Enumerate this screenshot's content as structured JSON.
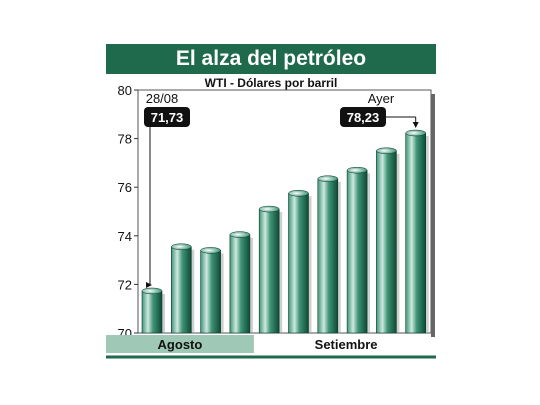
{
  "chart_data": {
    "type": "bar",
    "title": "El alza del petróleo",
    "subtitle": "WTI - Dólares por barril",
    "categories": [
      "",
      "",
      "",
      "",
      "",
      "",
      "",
      "",
      "",
      ""
    ],
    "values": [
      71.73,
      73.55,
      73.4,
      74.05,
      75.1,
      75.75,
      76.35,
      76.7,
      77.5,
      78.23
    ],
    "ylim": [
      70,
      80
    ],
    "yticks": [
      "70",
      "72",
      "74",
      "76",
      "78",
      "80"
    ],
    "period_labels": [
      {
        "label": "Agosto",
        "bars": [
          0,
          3
        ]
      },
      {
        "label": "Setiembre",
        "bars": [
          4,
          9
        ]
      }
    ],
    "annotations": [
      {
        "top": "28/08",
        "value": "71,73",
        "bar": 0
      },
      {
        "top": "Ayer",
        "value": "78,23",
        "bar": 9
      }
    ],
    "colors": {
      "banner": "#1f6a4c",
      "bar_light": "#cfe9de",
      "bar_mid": "#3f9478",
      "bar_dark": "#0e4a34",
      "august_band": "#9fc8b6",
      "annotation_box": "#111111"
    }
  }
}
